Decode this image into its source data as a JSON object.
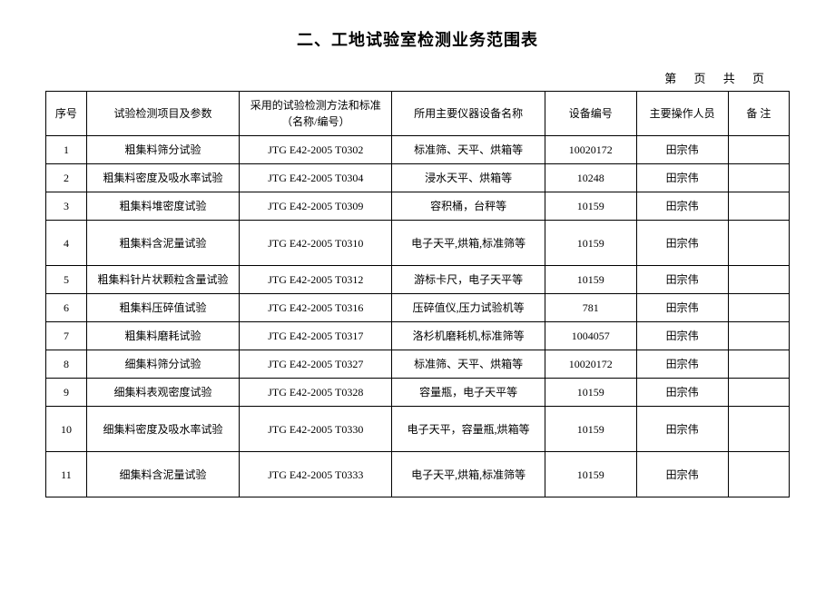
{
  "title": "二、工地试验室检测业务范围表",
  "page_info": "第 页 共 页",
  "headers": {
    "seq": "序号",
    "item": "试验检测项目及参数",
    "method": "采用的试验检测方法和标准（名称/编号）",
    "equipment": "所用主要仪器设备名称",
    "equip_num": "设备编号",
    "operator": "主要操作人员",
    "note": "备 注"
  },
  "rows": [
    {
      "seq": "1",
      "item": "粗集料筛分试验",
      "method": "JTG E42-2005 T0302",
      "equipment": "标准筛、天平、烘箱等",
      "equip_num": "10020172",
      "operator": "田宗伟",
      "note": "",
      "tall": false
    },
    {
      "seq": "2",
      "item": "粗集料密度及吸水率试验",
      "method": "JTG E42-2005 T0304",
      "equipment": "浸水天平、烘箱等",
      "equip_num": "10248",
      "operator": "田宗伟",
      "note": "",
      "tall": false
    },
    {
      "seq": "3",
      "item": "粗集料堆密度试验",
      "method": "JTG E42-2005 T0309",
      "equipment": "容积桶，台秤等",
      "equip_num": "10159",
      "operator": "田宗伟",
      "note": "",
      "tall": false
    },
    {
      "seq": "4",
      "item": "粗集料含泥量试验",
      "method": "JTG E42-2005 T0310",
      "equipment": "电子天平,烘箱,标准筛等",
      "equip_num": "10159",
      "operator": "田宗伟",
      "note": "",
      "tall": true
    },
    {
      "seq": "5",
      "item": "粗集料针片状颗粒含量试验",
      "method": "JTG E42-2005 T0312",
      "equipment": "游标卡尺，电子天平等",
      "equip_num": "10159",
      "operator": "田宗伟",
      "note": "",
      "tall": false
    },
    {
      "seq": "6",
      "item": "粗集料压碎值试验",
      "method": "JTG E42-2005 T0316",
      "equipment": "压碎值仪,压力试验机等",
      "equip_num": "781",
      "operator": "田宗伟",
      "note": "",
      "tall": false
    },
    {
      "seq": "7",
      "item": "粗集料磨耗试验",
      "method": "JTG E42-2005 T0317",
      "equipment": "洛杉机磨耗机,标准筛等",
      "equip_num": "1004057",
      "operator": "田宗伟",
      "note": "",
      "tall": false
    },
    {
      "seq": "8",
      "item": "细集料筛分试验",
      "method": "JTG E42-2005 T0327",
      "equipment": "标准筛、天平、烘箱等",
      "equip_num": "10020172",
      "operator": "田宗伟",
      "note": "",
      "tall": false
    },
    {
      "seq": "9",
      "item": "细集料表观密度试验",
      "method": "JTG E42-2005 T0328",
      "equipment": "容量瓶，电子天平等",
      "equip_num": "10159",
      "operator": "田宗伟",
      "note": "",
      "tall": false
    },
    {
      "seq": "10",
      "item": "细集料密度及吸水率试验",
      "method": "JTG E42-2005 T0330",
      "equipment": "电子天平，容量瓶,烘箱等",
      "equip_num": "10159",
      "operator": "田宗伟",
      "note": "",
      "tall": true
    },
    {
      "seq": "11",
      "item": "细集料含泥量试验",
      "method": "JTG E42-2005 T0333",
      "equipment": "电子天平,烘箱,标准筛等",
      "equip_num": "10159",
      "operator": "田宗伟",
      "note": "",
      "tall": true
    }
  ]
}
